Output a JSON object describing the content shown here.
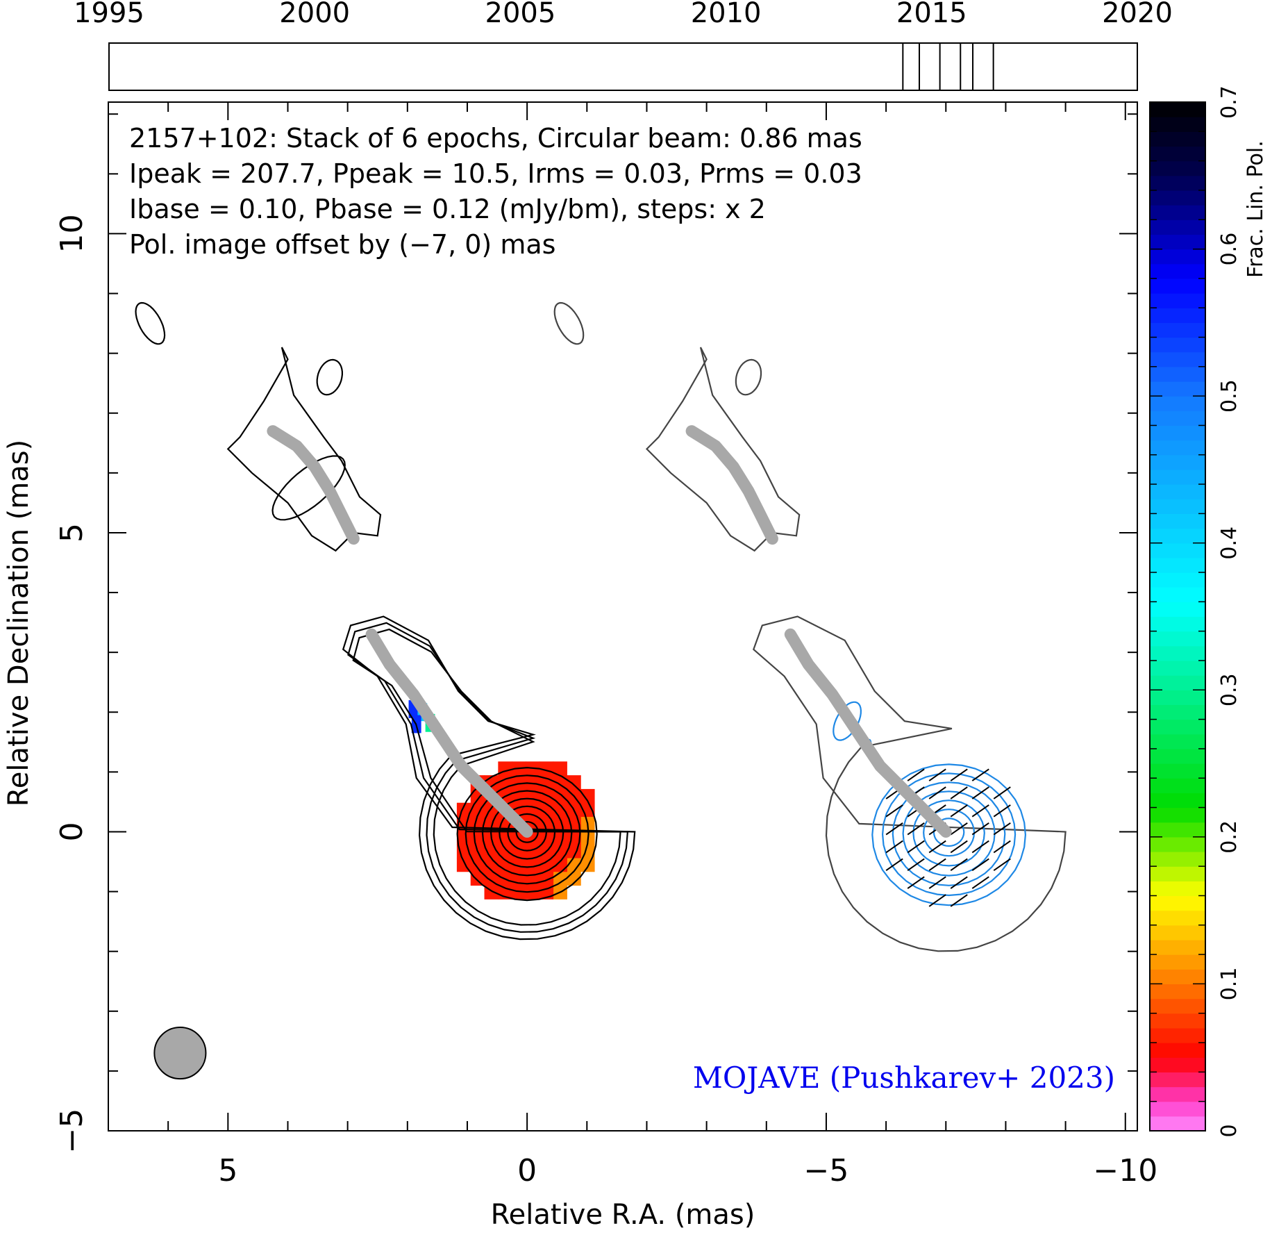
{
  "header": {
    "lines": [
      "2157+102: Stack of 6 epochs, Circular beam: 0.86 mas",
      "Ipeak = 207.7, Ppeak = 10.5, Irms = 0.03, Prms = 0.03",
      "Ibase = 0.10, Pbase = 0.12 (mJy/bm), steps: x 2"
    ],
    "offset_note": "Pol. image offset by (−7, 0) mas",
    "credit": "MOJAVE (Pushkarev+ 2023)"
  },
  "colors": {
    "offset_note": "#1e88e5",
    "credit": "#0000ee",
    "stokes_i_contours": "#000000",
    "offset_i_contours": "#444444",
    "pol_contours": "#1e88e5",
    "ridge_line": "#a8a8a8",
    "beam": "#a8a8a8"
  },
  "chart_data": [
    {
      "type": "timeline",
      "axis": {
        "ticks": [
          1995,
          2000,
          2005,
          2010,
          2015,
          2020
        ],
        "range": [
          1995,
          2020
        ]
      },
      "epochs": [
        2014.3,
        2014.7,
        2015.2,
        2015.7,
        2016.0,
        2016.5
      ]
    },
    {
      "type": "image",
      "xlabel": "Relative R.A. (mas)",
      "ylabel": "Relative Declination (mas)",
      "xlim": [
        7,
        -10.2
      ],
      "ylim": [
        -5,
        12.2
      ],
      "xticks": [
        5,
        0,
        -5,
        -10
      ],
      "yticks": [
        -5,
        0,
        5,
        10
      ],
      "xtick_labels": [
        "5",
        "0",
        "−5",
        "−10"
      ],
      "ytick_labels": [
        "−5",
        "0",
        "5",
        "10"
      ],
      "beam": {
        "diameter_mas": 0.86,
        "center": [
          5.8,
          -3.7
        ]
      },
      "ridge_line": {
        "core_segment": [
          [
            0,
            0
          ],
          [
            0.5,
            0.5
          ],
          [
            1.1,
            1.1
          ],
          [
            1.5,
            1.7
          ],
          [
            1.9,
            2.3
          ],
          [
            2.3,
            2.8
          ],
          [
            2.6,
            3.3
          ]
        ],
        "outer_segment": [
          [
            2.9,
            4.9
          ],
          [
            3.1,
            5.3
          ],
          [
            3.3,
            5.7
          ],
          [
            3.55,
            6.1
          ],
          [
            3.85,
            6.45
          ],
          [
            4.25,
            6.7
          ]
        ]
      },
      "stokes_i_image": {
        "offset_mas": [
          0,
          0
        ],
        "contour_levels_mJy_per_beam": [
          0.1,
          0.2,
          0.4,
          0.8,
          1.6,
          3.2,
          6.4,
          12.8,
          25.6,
          51.2,
          102.4
        ],
        "peak_mJy_per_beam": 207.7,
        "core_radius_mas": 1.2,
        "outer_radius_mas": 1.55
      },
      "polarized_image": {
        "offset_mas": [
          -7,
          0
        ],
        "contour_levels_mJy_per_beam": [
          0.12,
          0.24,
          0.48,
          0.96,
          1.92,
          3.84,
          7.68
        ],
        "peak_mJy_per_beam": 10.5,
        "evpa_deg": -55
      },
      "fractional_polarization": {
        "colormap_range": [
          0,
          0.7
        ],
        "core_value": 0.06,
        "edge_value": 0.11,
        "knot_values": [
          0.55,
          0.42,
          0.3
        ]
      }
    },
    {
      "type": "colorbar",
      "label": "Frac. Lin. Pol.",
      "range": [
        0,
        0.7
      ],
      "ticks": [
        0,
        0.1,
        0.2,
        0.3,
        0.4,
        0.5,
        0.6,
        0.7
      ],
      "tick_labels": [
        "0",
        "0.1",
        "0.2",
        "0.3",
        "0.4",
        "0.5",
        "0.6",
        "0.7"
      ]
    }
  ]
}
